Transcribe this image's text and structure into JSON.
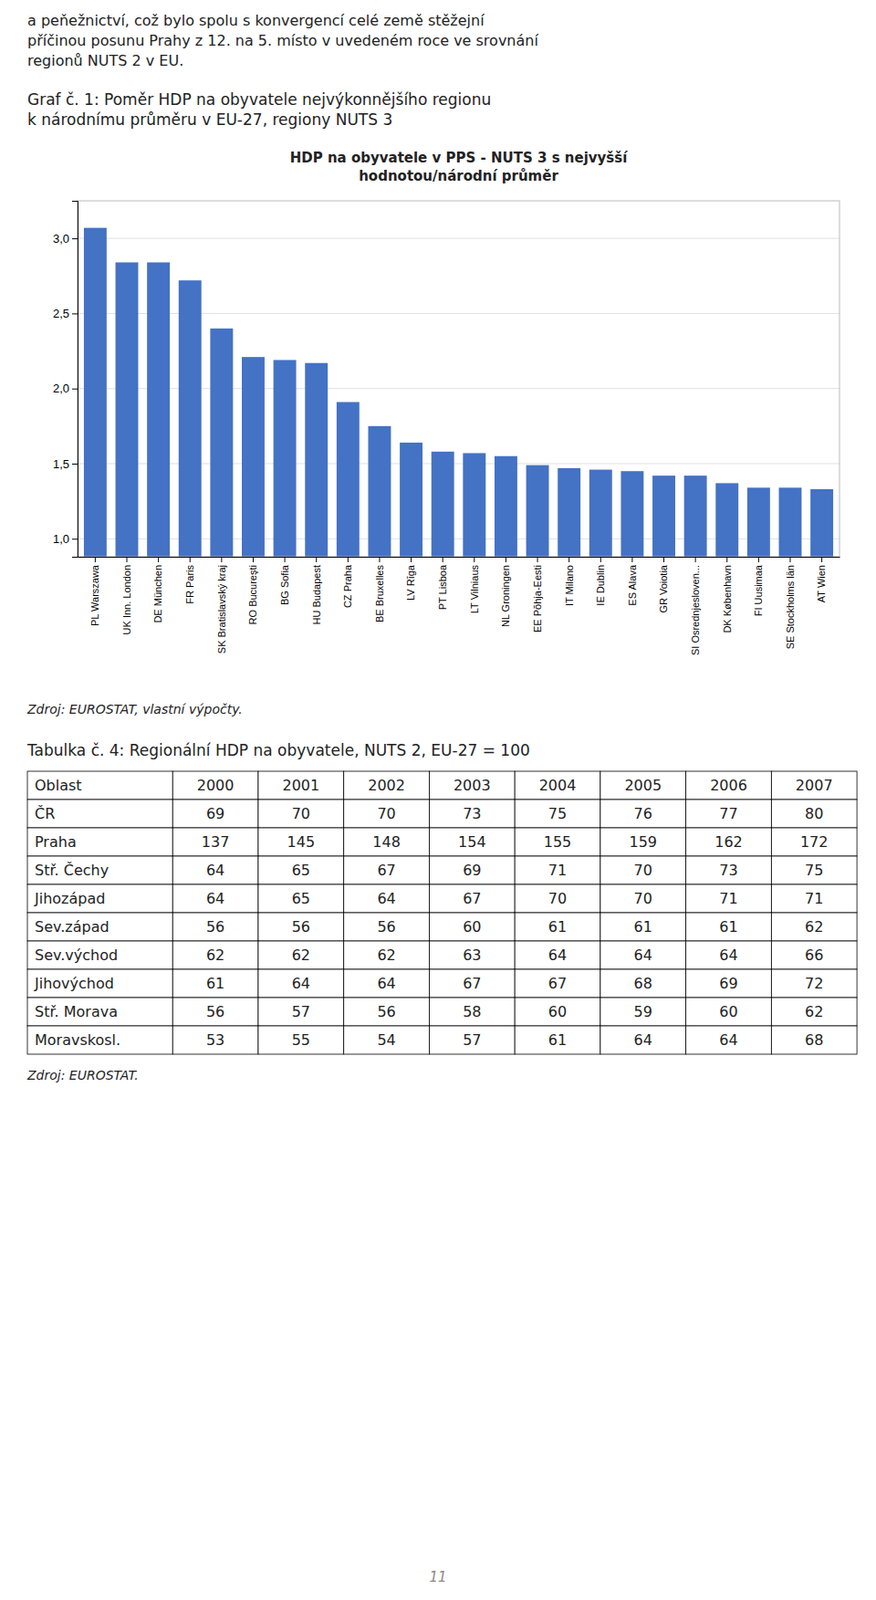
{
  "text_lines": [
    "a peňežnictví, což bylo spolu s konvergencí celé země stěžejní",
    "příčinou posunu Prahy z 12. na 5. místo v uvedeném roce ve srovnání",
    "regionů NUTS 2 v EU."
  ],
  "figure_caption": [
    "Graf č. 1: Poměr HDP na obyvatele nejvýkonnějšího regionu",
    "k národnímu průměru v EU-27, regiony NUTS 3"
  ],
  "chart_data": {
    "type": "bar",
    "title": "HDP na obyvatele v PPS - NUTS 3 s nejvyšší\nhodnotou/národní průměr",
    "categories": [
      "PL Warszawa",
      "UK Inn. London",
      "DE München",
      "FR Paris",
      "SK Bratislavský kraj",
      "RO Bucureşti",
      "BG Sofia",
      "HU Budapest",
      "CZ Praha",
      "BE Bruxelles",
      "LV Rīga",
      "PT Lisboa",
      "LT Vilniaus",
      "NL Groningen",
      "EE Põhja-Eesti",
      "IT Milano",
      "IE Dublin",
      "ES Alava",
      "GR Voiotia",
      "SI Osrednjesloven...",
      "DK København",
      "FI Uusimaa",
      "SE Stockholms län",
      "AT Wien"
    ],
    "values": [
      3.07,
      2.84,
      2.84,
      2.72,
      2.4,
      2.21,
      2.19,
      2.17,
      1.91,
      1.75,
      1.64,
      1.58,
      1.57,
      1.55,
      1.49,
      1.47,
      1.46,
      1.45,
      1.42,
      1.42,
      1.37,
      1.34,
      1.34,
      1.33
    ],
    "color": "#4472C4",
    "ylim": [
      0.88,
      3.25
    ],
    "yticks": [
      {
        "value": 1.0,
        "label": "1,0"
      },
      {
        "value": 1.5,
        "label": "1,5"
      },
      {
        "value": 2.0,
        "label": "2,0"
      },
      {
        "value": 2.5,
        "label": "2,5"
      },
      {
        "value": 3.0,
        "label": "3,0"
      }
    ],
    "grid": true
  },
  "chart_source": "Zdroj: EUROSTAT, vlastní výpočty.",
  "table_caption": "Tabulka č. 4: Regionální HDP na obyvatele, NUTS 2, EU-27 = 100",
  "table": {
    "columns": [
      "Oblast",
      "2000",
      "2001",
      "2002",
      "2003",
      "2004",
      "2005",
      "2006",
      "2007"
    ],
    "rows": [
      [
        "ČR",
        "69",
        "70",
        "70",
        "73",
        "75",
        "76",
        "77",
        "80"
      ],
      [
        "Praha",
        "137",
        "145",
        "148",
        "154",
        "155",
        "159",
        "162",
        "172"
      ],
      [
        "Stř. Čechy",
        "64",
        "65",
        "67",
        "69",
        "71",
        "70",
        "73",
        "75"
      ],
      [
        "Jihozápad",
        "64",
        "65",
        "64",
        "67",
        "70",
        "70",
        "71",
        "71"
      ],
      [
        "Sev.západ",
        "56",
        "56",
        "56",
        "60",
        "61",
        "61",
        "61",
        "62"
      ],
      [
        "Sev.východ",
        "62",
        "62",
        "62",
        "63",
        "64",
        "64",
        "64",
        "66"
      ],
      [
        "Jihovýchod",
        "61",
        "64",
        "64",
        "67",
        "67",
        "68",
        "69",
        "72"
      ],
      [
        "Stř. Morava",
        "56",
        "57",
        "56",
        "58",
        "60",
        "59",
        "60",
        "62"
      ],
      [
        "Moravskosl.",
        "53",
        "55",
        "54",
        "57",
        "61",
        "64",
        "64",
        "68"
      ]
    ]
  },
  "table_source": "Zdroj: EUROSTAT.",
  "page_number": "11"
}
